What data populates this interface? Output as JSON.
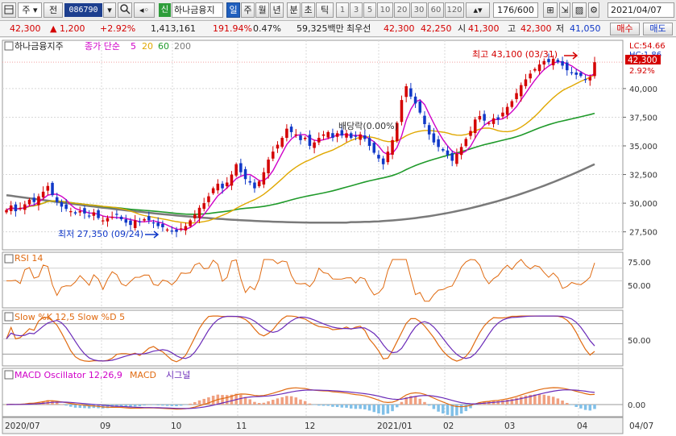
{
  "toolbar": {
    "type_label": "주",
    "prev_label": "전",
    "code": "086790",
    "stock_name": "하나금융지",
    "green_label": "신",
    "periods": [
      "일",
      "주",
      "월",
      "년",
      "분",
      "초",
      "틱"
    ],
    "active_period": "일",
    "minute_options": [
      "1",
      "3",
      "5",
      "10",
      "20",
      "30",
      "60",
      "120"
    ],
    "count": "176/600",
    "date": "2021/04/07"
  },
  "quote": {
    "price": "42,300",
    "change": "1,200",
    "change_pct": "+2.92%",
    "volume": "1,413,161",
    "volume_ratio": "191.94%",
    "turnover": "0.47%",
    "amount": "59,325백만",
    "best_label": "최우선",
    "best_ask": "42,300",
    "best_bid": "42,250",
    "open_label": "시",
    "open": "41,300",
    "high_label": "고",
    "high": "42,300",
    "low_label": "저",
    "low": "41,050",
    "buy_label": "매수",
    "sell_label": "매도"
  },
  "colors": {
    "up": "#d40000",
    "down": "#1038c8",
    "ma5": "#d000c8",
    "ma20": "#e0a800",
    "ma60": "#1f9a2a",
    "ma200": "#7a7a7a",
    "rsi": "#e06a10",
    "stoch_k": "#e06a10",
    "stoch_d": "#6a2ab8",
    "macd": "#e06a10",
    "signal": "#6a2ab8",
    "hist_pos": "#f0a080",
    "hist_neg": "#80c0e8"
  },
  "price_panel": {
    "name": "하나금융지주",
    "ma_label": "종가 단순",
    "ma_periods": [
      "5",
      "20",
      "60",
      "200"
    ],
    "lc_label": "LC:54.66",
    "hc_label": "HC:1.86",
    "current_price": "42,300",
    "current_change_pct": "2.92%",
    "high_annotation": "최고 43,100 (03/31)",
    "low_annotation": "최저 27,350 (09/24)",
    "dividend_annotation": "배당락(0.00%)"
  },
  "rsi_panel": {
    "title": "RSI 14",
    "ticks": [
      "75.00",
      "50.00"
    ]
  },
  "stoch_panel": {
    "title": "Slow %K 12,5  Slow %D 5",
    "ticks": [
      "50.00"
    ]
  },
  "macd_panel": {
    "title_osc": "MACD Oscillator 12,26,9",
    "title_macd": "MACD",
    "title_signal": "시그널",
    "ticks": [
      "0.00"
    ]
  },
  "x_axis": {
    "labels": [
      "2020/07",
      "09",
      "10",
      "11",
      "12",
      "2021/01",
      "02",
      "03",
      "04",
      "04/07"
    ]
  },
  "chart_data": {
    "type": "candlestick",
    "title": "하나금융지주",
    "ylim": [
      26000,
      44000
    ],
    "y_ticks": [
      27500,
      30000,
      32500,
      35000,
      37500,
      40000
    ],
    "ohlc_close": [
      29400,
      29800,
      29300,
      29600,
      29900,
      30300,
      30100,
      30600,
      31000,
      31500,
      30700,
      30100,
      29700,
      29500,
      29300,
      29100,
      29300,
      29100,
      28900,
      29200,
      28700,
      28500,
      28700,
      28800,
      29000,
      28600,
      28300,
      28100,
      28500,
      28400,
      28600,
      28500,
      28300,
      28000,
      27900,
      27700,
      27600,
      27500,
      27800,
      28000,
      28500,
      29000,
      29600,
      30000,
      30600,
      31300,
      31700,
      31300,
      31800,
      32500,
      33400,
      32700,
      32100,
      31800,
      31300,
      31900,
      32700,
      33800,
      34500,
      35100,
      35700,
      36500,
      36200,
      36000,
      35500,
      35700,
      35000,
      35300,
      35700,
      36000,
      36200,
      35700,
      36100,
      35900,
      36100,
      35700,
      35800,
      36000,
      35600,
      35000,
      34400,
      33900,
      33400,
      34500,
      35500,
      37000,
      39000,
      40200,
      39300,
      38700,
      37900,
      36900,
      36000,
      35300,
      34900,
      34600,
      34200,
      33700,
      34300,
      34900,
      35600,
      36300,
      37300,
      37600,
      37200,
      37000,
      37400,
      37300,
      37900,
      38400,
      38900,
      39600,
      40300,
      40800,
      41300,
      41700,
      42100,
      42400,
      42300,
      42600,
      42300,
      42000,
      41600,
      41400,
      41200,
      41100,
      40800,
      41000,
      42300
    ]
  }
}
